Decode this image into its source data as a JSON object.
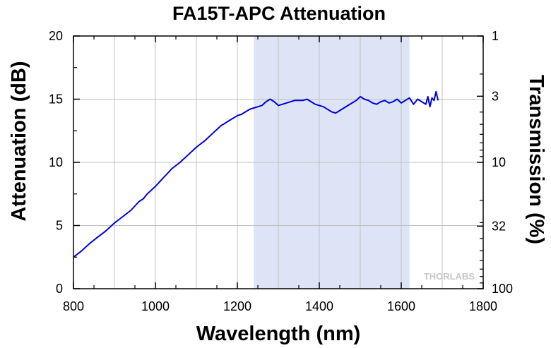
{
  "chart_data": {
    "type": "line",
    "title": "FA15T-APC Attenuation",
    "xlabel": "Wavelength (nm)",
    "ylabel": "Attenuation (dB)",
    "y2label": "Transmission (%)",
    "xlim": [
      800,
      1800
    ],
    "ylim": [
      0,
      20
    ],
    "xticks": [
      800,
      1000,
      1200,
      1400,
      1600,
      1800
    ],
    "yticks": [
      0,
      5,
      10,
      15,
      20
    ],
    "y2ticks": [
      {
        "label": "1",
        "db": 20
      },
      {
        "label": "3",
        "db": 15.23
      },
      {
        "label": "10",
        "db": 10
      },
      {
        "label": "32",
        "db": 4.95
      },
      {
        "label": "100",
        "db": 0
      }
    ],
    "grid": true,
    "highlight_region": [
      1240,
      1620
    ],
    "line_color": "#0000dd",
    "highlight_color": "#dce4f5",
    "watermark": "THORLABS",
    "series": [
      {
        "x": [
          800,
          820,
          840,
          860,
          880,
          900,
          920,
          940,
          960,
          970,
          980,
          1000,
          1020,
          1040,
          1060,
          1080,
          1100,
          1120,
          1140,
          1160,
          1180,
          1200,
          1210,
          1220,
          1230,
          1240,
          1250,
          1260,
          1270,
          1280,
          1290,
          1300,
          1310,
          1320,
          1330,
          1340,
          1350,
          1360,
          1370,
          1380,
          1390,
          1400,
          1410,
          1420,
          1430,
          1440,
          1450,
          1460,
          1470,
          1480,
          1490,
          1500,
          1510,
          1520,
          1530,
          1540,
          1550,
          1560,
          1570,
          1580,
          1590,
          1600,
          1610,
          1620,
          1630,
          1640,
          1650,
          1660,
          1665,
          1670,
          1675,
          1680,
          1685,
          1690
        ],
        "y": [
          2.5,
          3.0,
          3.6,
          4.1,
          4.6,
          5.2,
          5.7,
          6.2,
          6.9,
          7.1,
          7.5,
          8.1,
          8.8,
          9.5,
          10.0,
          10.6,
          11.2,
          11.7,
          12.3,
          12.9,
          13.3,
          13.7,
          13.8,
          14.0,
          14.2,
          14.3,
          14.4,
          14.5,
          14.8,
          15.0,
          14.8,
          14.5,
          14.6,
          14.7,
          14.8,
          14.9,
          14.9,
          14.9,
          15.0,
          14.8,
          14.6,
          14.5,
          14.4,
          14.2,
          14.0,
          13.9,
          14.1,
          14.3,
          14.5,
          14.7,
          14.9,
          15.2,
          15.0,
          14.9,
          14.7,
          14.6,
          14.8,
          14.9,
          14.7,
          14.8,
          15.0,
          14.7,
          14.9,
          15.1,
          14.6,
          15.0,
          14.8,
          14.6,
          15.2,
          14.4,
          15.1,
          14.9,
          15.6,
          14.9
        ]
      }
    ]
  }
}
